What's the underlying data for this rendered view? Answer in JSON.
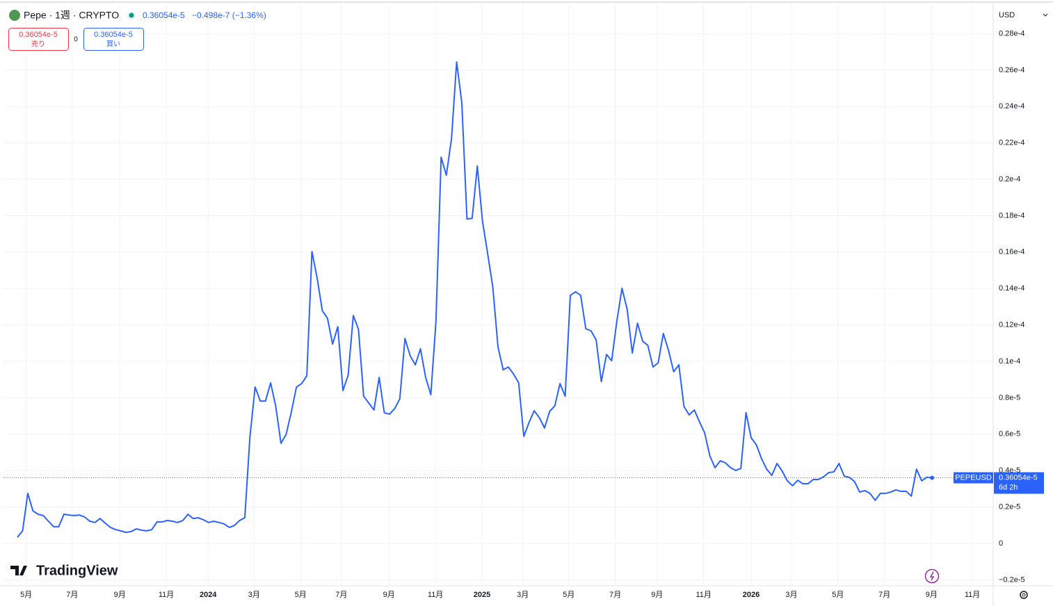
{
  "header": {
    "symbol": "Pepe · 1週 · CRYPTO",
    "price": "0.36054e-5",
    "change": "−0.498e-7 (−1.36%)",
    "currency": "USD",
    "countdown": "6d 2h"
  },
  "order": {
    "sell_price": "0.36054e-5",
    "sell": "売り",
    "spread": "0",
    "buy_price": "0.36054e-5",
    "buy": "買い"
  },
  "brand": "TradingView",
  "chart_data": {
    "type": "line",
    "xlim": [
      -2.7,
      188.7
    ],
    "xticks": [
      {
        "value": 1.7,
        "label": "5月"
      },
      {
        "value": 10.6,
        "label": "7月"
      },
      {
        "value": 19.8,
        "label": "9月"
      },
      {
        "value": 28.8,
        "label": "11月"
      },
      {
        "value": 36.9,
        "label": "2024"
      },
      {
        "value": 45.8,
        "label": "3月"
      },
      {
        "value": 54.8,
        "label": "5月"
      },
      {
        "value": 62.7,
        "label": "7月"
      },
      {
        "value": 71.9,
        "label": "9月"
      },
      {
        "value": 80.9,
        "label": "11月"
      },
      {
        "value": 89.9,
        "label": "2025"
      },
      {
        "value": 97.8,
        "label": "3月"
      },
      {
        "value": 106.7,
        "label": "5月"
      },
      {
        "value": 115.7,
        "label": "7月"
      },
      {
        "value": 123.8,
        "label": "9月"
      },
      {
        "value": 132.8,
        "label": "11月"
      },
      {
        "value": 142.0,
        "label": "2026"
      },
      {
        "value": 149.8,
        "label": "3月"
      },
      {
        "value": 158.8,
        "label": "5月"
      },
      {
        "value": 167.8,
        "label": "7月"
      },
      {
        "value": 176.9,
        "label": "9月"
      },
      {
        "value": 184.8,
        "label": "11月"
      }
    ],
    "ylim": [
      -2.33e-06,
      2.966e-05
    ],
    "yticks": [
      {
        "value": -2e-06,
        "label": "−0.2e-5"
      },
      0,
      {
        "value": 2e-06,
        "label": "0.2e-5"
      },
      {
        "value": 4e-06,
        "label": "0.4e-5"
      },
      {
        "value": 6e-06,
        "label": "0.6e-5"
      },
      {
        "value": 8e-06,
        "label": "0.8e-5"
      },
      {
        "value": 1e-05,
        "label": "0.1e-4"
      },
      {
        "value": 1.2e-05,
        "label": "0.12e-4"
      },
      {
        "value": 1.4e-05,
        "label": "0.14e-4"
      },
      {
        "value": 1.6e-05,
        "label": "0.16e-4"
      },
      {
        "value": 1.8e-05,
        "label": "0.18e-4"
      },
      {
        "value": 2e-05,
        "label": "0.2e-4"
      },
      {
        "value": 2.2e-05,
        "label": "0.22e-4"
      },
      {
        "value": 2.4e-05,
        "label": "0.24e-4"
      },
      {
        "value": 2.6e-05,
        "label": "0.26e-4"
      },
      {
        "value": 2.8e-05,
        "label": "0.28e-4"
      }
    ],
    "grid": true,
    "series": [
      {
        "name": "PEPEUSD",
        "color": "#2962ff",
        "values": [
          3.4e-07,
          6.9e-07,
          2.75e-06,
          1.79e-06,
          1.6e-06,
          1.53e-06,
          1.22e-06,
          9.2e-07,
          9.2e-07,
          1.6e-06,
          1.56e-06,
          1.53e-06,
          1.56e-06,
          1.45e-06,
          1.22e-06,
          1.15e-06,
          1.37e-06,
          1.11e-06,
          8.8e-07,
          7.6e-07,
          6.9e-07,
          6.1e-07,
          6.5e-07,
          8e-07,
          7.3e-07,
          6.9e-07,
          7.6e-07,
          1.18e-06,
          1.18e-06,
          1.26e-06,
          1.22e-06,
          1.15e-06,
          1.26e-06,
          1.6e-06,
          1.37e-06,
          1.41e-06,
          1.3e-06,
          1.15e-06,
          1.22e-06,
          1.15e-06,
          1.07e-06,
          8.8e-07,
          9.9e-07,
          1.26e-06,
          1.41e-06,
          5.88e-06,
          8.59e-06,
          7.82e-06,
          7.82e-06,
          8.82e-06,
          7.52e-06,
          5.5e-06,
          5.99e-06,
          7.21e-06,
          8.59e-06,
          8.78e-06,
          9.2e-06,
          1.603e-05,
          1.458e-05,
          1.279e-05,
          1.237e-05,
          1.095e-05,
          1.191e-05,
          8.4e-06,
          9.24e-06,
          1.252e-05,
          1.176e-05,
          8.09e-06,
          7.71e-06,
          7.33e-06,
          9.12e-06,
          7.18e-06,
          7.1e-06,
          7.4e-06,
          7.94e-06,
          1.126e-05,
          1.031e-05,
          9.81e-06,
          1.069e-05,
          9.12e-06,
          8.17e-06,
          1.221e-05,
          2.122e-05,
          2.023e-05,
          2.221e-05,
          2.645e-05,
          2.42e-05,
          1.782e-05,
          1.786e-05,
          2.073e-05,
          1.771e-05,
          1.592e-05,
          1.408e-05,
          1.08e-05,
          9.54e-06,
          9.69e-06,
          9.31e-06,
          8.82e-06,
          5.88e-06,
          6.64e-06,
          7.29e-06,
          6.91e-06,
          6.34e-06,
          7.25e-06,
          7.56e-06,
          8.78e-06,
          8.09e-06,
          1.363e-05,
          1.382e-05,
          1.363e-05,
          1.179e-05,
          1.168e-05,
          1.118e-05,
          8.89e-06,
          1.038e-05,
          1.004e-05,
          1.221e-05,
          1.401e-05,
          1.286e-05,
          1.046e-05,
          1.21e-05,
          1.111e-05,
          1.088e-05,
          9.69e-06,
          9.92e-06,
          1.153e-05,
          1.061e-05,
          9.43e-06,
          9.81e-06,
          7.52e-06,
          7.06e-06,
          7.33e-06,
          6.68e-06,
          6.07e-06,
          4.81e-06,
          4.16e-06,
          4.54e-06,
          4.43e-06,
          4.16e-06,
          4.01e-06,
          4.12e-06,
          7.18e-06,
          5.8e-06,
          5.42e-06,
          4.66e-06,
          4.08e-06,
          3.74e-06,
          4.39e-06,
          3.97e-06,
          3.44e-06,
          3.17e-06,
          3.47e-06,
          3.28e-06,
          3.28e-06,
          3.51e-06,
          3.51e-06,
          3.66e-06,
          3.89e-06,
          3.93e-06,
          4.39e-06,
          3.7e-06,
          3.63e-06,
          3.4e-06,
          2.82e-06,
          2.9e-06,
          2.75e-06,
          2.37e-06,
          2.75e-06,
          2.75e-06,
          2.82e-06,
          2.94e-06,
          2.86e-06,
          2.86e-06,
          2.6e-06,
          4.08e-06,
          3.44e-06,
          3.63e-06,
          3.6054e-06
        ]
      }
    ]
  }
}
